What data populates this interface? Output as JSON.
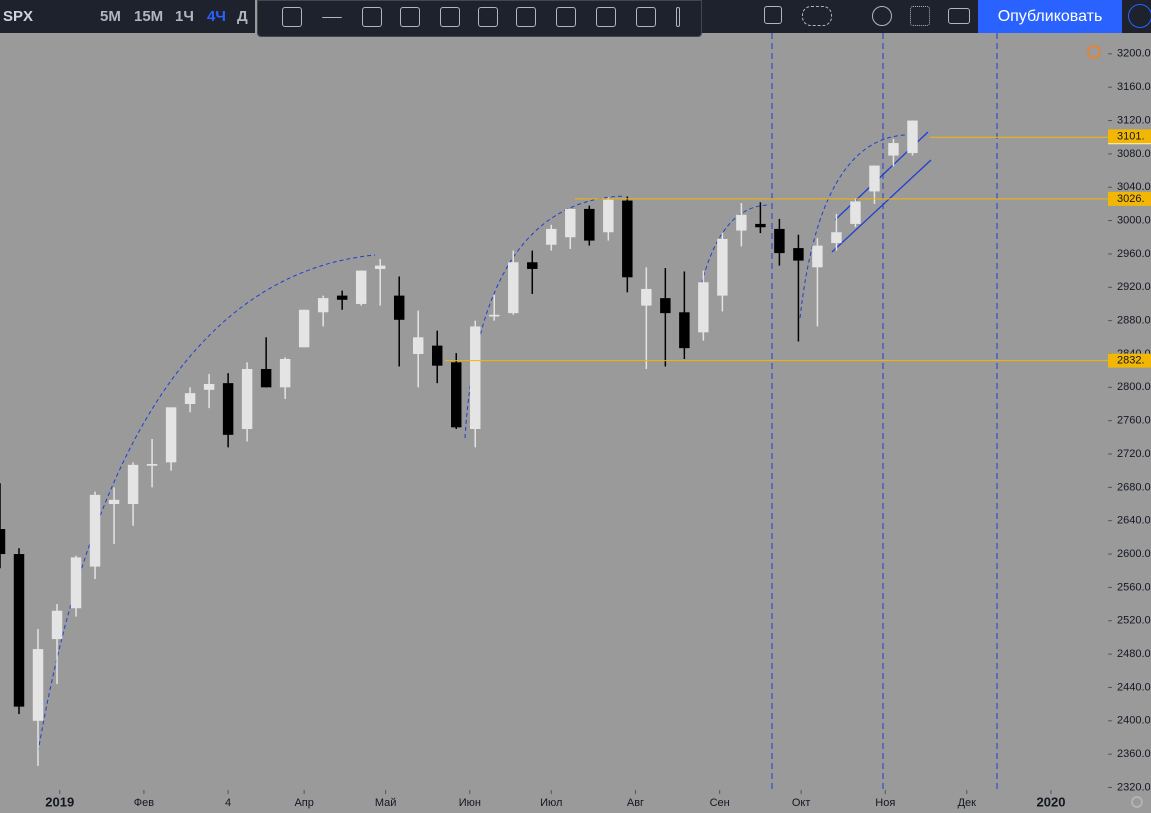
{
  "toolbar": {
    "symbol": "SPX",
    "intervals": [
      "5M",
      "15M",
      "1Ч",
      "4Ч",
      "Д"
    ],
    "active_interval": 3,
    "publish": "Опубликовать"
  },
  "chart_data": {
    "type": "candlestick",
    "x": [
      -21,
      -14,
      -7,
      0,
      7,
      14,
      21,
      28,
      35,
      42,
      49,
      56,
      63,
      70,
      77,
      84,
      91,
      98,
      105,
      112,
      119,
      126,
      133,
      140,
      147,
      154,
      161,
      168,
      175,
      182,
      189,
      196,
      203,
      210,
      217,
      224,
      231,
      238,
      245,
      252,
      259,
      266,
      273,
      280,
      287,
      294,
      301,
      308,
      315
    ],
    "open": [
      2630,
      2600,
      2400,
      2498,
      2535,
      2585,
      2660,
      2660,
      2706,
      2710,
      2780,
      2797,
      2805,
      2750,
      2822,
      2800,
      2848,
      2890,
      2910,
      2900,
      2942,
      2910,
      2840,
      2850,
      2830,
      2750,
      2885,
      2889,
      2950,
      2971,
      2980,
      3014,
      2986,
      3024,
      2898,
      2907,
      2890,
      2866,
      2910,
      2988,
      2996,
      2990,
      2967,
      2944,
      2973,
      2996,
      3035,
      3078,
      3081
    ],
    "high": [
      2685,
      2607,
      2510,
      2540,
      2598,
      2675,
      2680,
      2710,
      2738,
      2776,
      2800,
      2816,
      2817,
      2830,
      2860,
      2836,
      2893,
      2910,
      2916,
      2940,
      2954,
      2933,
      2892,
      2868,
      2841,
      2880,
      2911,
      2964,
      2964,
      2995,
      3014,
      3018,
      3028,
      3029,
      2944,
      2943,
      2939,
      2940,
      2985,
      3021,
      3022,
      3002,
      2983,
      2979,
      3008,
      3027,
      3066,
      3098,
      3120
    ],
    "low": [
      2583,
      2408,
      2346,
      2444,
      2525,
      2570,
      2612,
      2634,
      2680,
      2700,
      2770,
      2775,
      2728,
      2735,
      2800,
      2786,
      2848,
      2873,
      2893,
      2898,
      2898,
      2825,
      2800,
      2805,
      2750,
      2728,
      2880,
      2887,
      2912,
      2964,
      2966,
      2970,
      2976,
      2914,
      2822,
      2825,
      2834,
      2856,
      2891,
      2969,
      2985,
      2946,
      2855,
      2873,
      2964,
      2992,
      3020,
      3065,
      3078
    ],
    "close": [
      2600,
      2417,
      2486,
      2532,
      2596,
      2671,
      2665,
      2707,
      2708,
      2776,
      2793,
      2804,
      2743,
      2822,
      2800,
      2834,
      2893,
      2907,
      2905,
      2940,
      2946,
      2881,
      2860,
      2826,
      2752,
      2873,
      2887,
      2950,
      2942,
      2990,
      3014,
      2976,
      3025,
      2932,
      2918,
      2889,
      2847,
      2926,
      2978,
      3007,
      2992,
      2961,
      2952,
      2970,
      2986,
      3023,
      3066,
      3093,
      3120
    ],
    "up_color": "#e4e4e4",
    "down_color": "#000000",
    "xlim": [
      -21,
      387
    ],
    "xticks": [
      {
        "value": 1,
        "label": "2019"
      },
      {
        "value": 32,
        "label": "Фев"
      },
      {
        "value": 63,
        "label": "4"
      },
      {
        "value": 91,
        "label": "Апр"
      },
      {
        "value": 121,
        "label": "Май"
      },
      {
        "value": 152,
        "label": "Июн"
      },
      {
        "value": 182,
        "label": "Июл"
      },
      {
        "value": 213,
        "label": "Авг"
      },
      {
        "value": 244,
        "label": "Сен"
      },
      {
        "value": 274,
        "label": "Окт"
      },
      {
        "value": 305,
        "label": "Ноя"
      },
      {
        "value": 335,
        "label": "Дек"
      },
      {
        "value": 366,
        "label": "2020"
      }
    ],
    "ylim": [
      2311,
      3225
    ],
    "yticks": [
      {
        "value": 2320,
        "label": "2320.0"
      },
      {
        "value": 2360,
        "label": "2360.0"
      },
      {
        "value": 2400,
        "label": "2400.0"
      },
      {
        "value": 2440,
        "label": "2440.0"
      },
      {
        "value": 2480,
        "label": "2480.0"
      },
      {
        "value": 2520,
        "label": "2520.0"
      },
      {
        "value": 2560,
        "label": "2560.0"
      },
      {
        "value": 2600,
        "label": "2600.0"
      },
      {
        "value": 2640,
        "label": "2640.0"
      },
      {
        "value": 2680,
        "label": "2680.0"
      },
      {
        "value": 2720,
        "label": "2720.0"
      },
      {
        "value": 2760,
        "label": "2760.0"
      },
      {
        "value": 2800,
        "label": "2800.0"
      },
      {
        "value": 2840,
        "label": "2840.0"
      },
      {
        "value": 2880,
        "label": "2880.0"
      },
      {
        "value": 2920,
        "label": "2920.0"
      },
      {
        "value": 2960,
        "label": "2960.0"
      },
      {
        "value": 3000,
        "label": "3000.0"
      },
      {
        "value": 3040,
        "label": "3040.0"
      },
      {
        "value": 3080,
        "label": "3080.0"
      },
      {
        "value": 3120,
        "label": "3120.0"
      },
      {
        "value": 3160,
        "label": "3160.0"
      },
      {
        "value": 3200,
        "label": "3200.0"
      }
    ],
    "level_color": "#f2b705",
    "levels": [
      {
        "value": 3100,
        "label": "3100."
      },
      {
        "value": 3101,
        "label": "3101."
      },
      {
        "value": 3026,
        "label": "3026."
      },
      {
        "value": 2832,
        "label": "2832."
      }
    ]
  }
}
